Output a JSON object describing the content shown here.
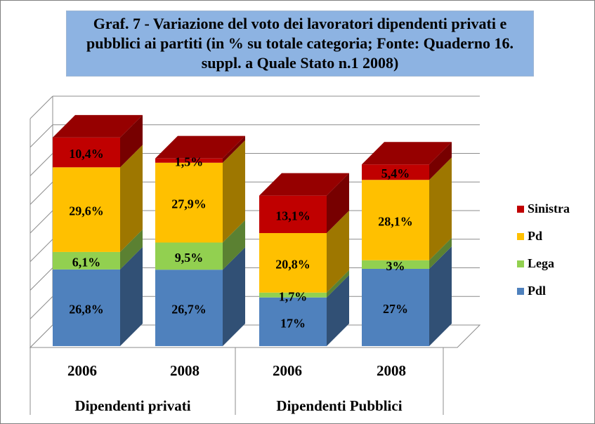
{
  "chart_data": {
    "type": "bar",
    "stacked": true,
    "three_d": true,
    "title": "Graf. 7 - Variazione del voto dei lavoratori dipendenti privati e pubblici ai partiti (in % su totale categoria; Fonte: Quaderno 16. suppl. a Quale Stato n.1 2008)",
    "categories": [
      "2006",
      "2008",
      "2006",
      "2008"
    ],
    "groups": [
      {
        "label": "Dipendenti privati",
        "categories": [
          "2006",
          "2008"
        ]
      },
      {
        "label": "Dipendenti Pubblici",
        "categories": [
          "2006",
          "2008"
        ]
      }
    ],
    "series": [
      {
        "name": "Pdl",
        "values": [
          26.8,
          26.7,
          17,
          27
        ],
        "labels": [
          "26,8%",
          "26,7%",
          "17%",
          "27%"
        ],
        "color": "#4f81bd"
      },
      {
        "name": "Lega",
        "values": [
          6.1,
          9.5,
          1.7,
          3
        ],
        "labels": [
          "6,1%",
          "9,5%",
          "1,7%",
          "3%"
        ],
        "color": "#92d050"
      },
      {
        "name": "Pd",
        "values": [
          29.6,
          27.9,
          20.8,
          28.1
        ],
        "labels": [
          "29,6%",
          "27,9%",
          "20,8%",
          "28,1%"
        ],
        "color": "#ffc000"
      },
      {
        "name": "Sinistra",
        "values": [
          10.4,
          1.5,
          13.1,
          5.4
        ],
        "labels": [
          "10,4%",
          "1,5%",
          "13,1%",
          "5,4%"
        ],
        "color": "#c00000"
      }
    ],
    "legend": [
      "Sinistra",
      "Pd",
      "Lega",
      "Pdl"
    ],
    "legend_position": "right",
    "grid": true,
    "ylim": [
      0,
      80
    ]
  }
}
